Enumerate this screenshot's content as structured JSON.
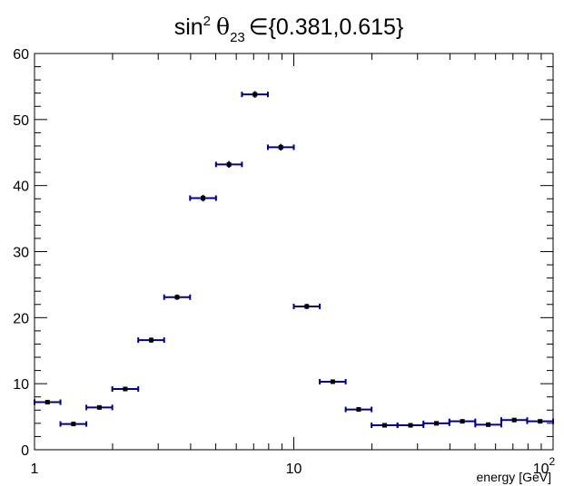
{
  "chart_data": {
    "type": "scatter",
    "title": {
      "prefix": "sin",
      "exponent": "2",
      "symbol": "θ",
      "subscript": "23",
      "relation": "∈{0.381,0.615}"
    },
    "xlabel": "energy [GeV]",
    "ylabel": "",
    "xscale": "log",
    "xlim": [
      1,
      100
    ],
    "ylim": [
      0,
      60
    ],
    "x_ticks": [
      {
        "value": 1,
        "label": "1"
      },
      {
        "value": 10,
        "label": "10"
      },
      {
        "value": 100,
        "base": "10",
        "exponent": "2"
      }
    ],
    "y_ticks": [
      "0",
      "10",
      "20",
      "30",
      "40",
      "50",
      "60"
    ],
    "grid": false,
    "legend": "none",
    "marker_color": "#00008b",
    "series": [
      {
        "bins": [
          {
            "x_low": 1.0,
            "x_high": 1.259,
            "y": 7.2,
            "yerr": 0.3
          },
          {
            "x_low": 1.259,
            "x_high": 1.585,
            "y": 3.9,
            "yerr": 0.3
          },
          {
            "x_low": 1.585,
            "x_high": 1.995,
            "y": 6.4,
            "yerr": 0.3
          },
          {
            "x_low": 1.995,
            "x_high": 2.512,
            "y": 9.2,
            "yerr": 0.3
          },
          {
            "x_low": 2.512,
            "x_high": 3.162,
            "y": 16.6,
            "yerr": 0.4
          },
          {
            "x_low": 3.162,
            "x_high": 3.981,
            "y": 23.1,
            "yerr": 0.4
          },
          {
            "x_low": 3.981,
            "x_high": 5.012,
            "y": 38.1,
            "yerr": 0.5
          },
          {
            "x_low": 5.012,
            "x_high": 6.31,
            "y": 43.2,
            "yerr": 0.5
          },
          {
            "x_low": 6.31,
            "x_high": 7.943,
            "y": 53.8,
            "yerr": 0.5
          },
          {
            "x_low": 7.943,
            "x_high": 10.0,
            "y": 45.8,
            "yerr": 0.5
          },
          {
            "x_low": 10.0,
            "x_high": 12.59,
            "y": 21.7,
            "yerr": 0.4
          },
          {
            "x_low": 12.59,
            "x_high": 15.85,
            "y": 10.3,
            "yerr": 0.3
          },
          {
            "x_low": 15.85,
            "x_high": 19.95,
            "y": 6.1,
            "yerr": 0.3
          },
          {
            "x_low": 19.95,
            "x_high": 25.12,
            "y": 3.7,
            "yerr": 0.2
          },
          {
            "x_low": 25.12,
            "x_high": 31.62,
            "y": 3.7,
            "yerr": 0.2
          },
          {
            "x_low": 31.62,
            "x_high": 39.81,
            "y": 4.0,
            "yerr": 0.2
          },
          {
            "x_low": 39.81,
            "x_high": 50.12,
            "y": 4.3,
            "yerr": 0.2
          },
          {
            "x_low": 50.12,
            "x_high": 63.1,
            "y": 3.8,
            "yerr": 0.2
          },
          {
            "x_low": 63.1,
            "x_high": 79.43,
            "y": 4.5,
            "yerr": 0.2
          },
          {
            "x_low": 79.43,
            "x_high": 100.0,
            "y": 4.3,
            "yerr": 0.2
          }
        ]
      }
    ]
  }
}
